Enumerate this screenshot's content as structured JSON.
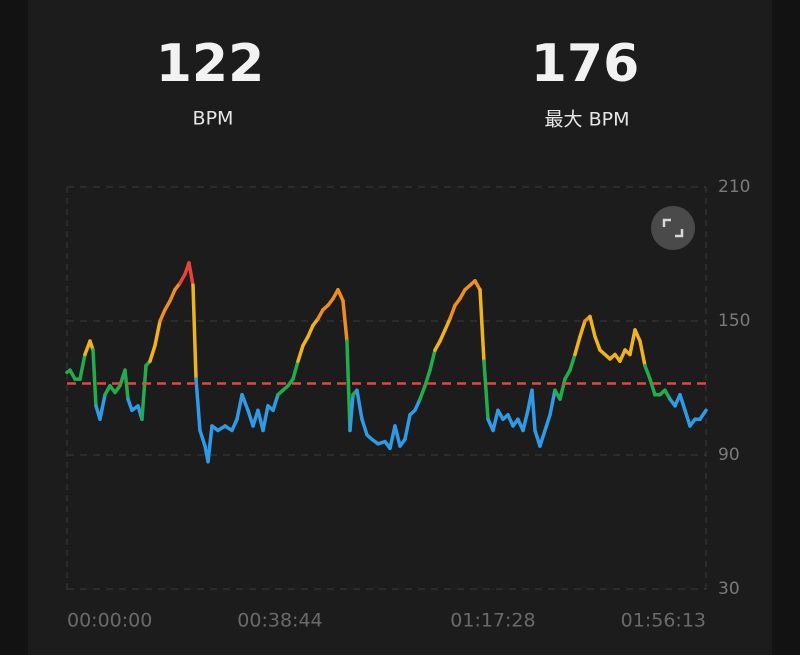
{
  "stats": [
    {
      "value": 122,
      "label": "BPM"
    },
    {
      "value": 176,
      "label": "最大 BPM"
    }
  ],
  "chart_data": {
    "type": "line",
    "x": [
      0,
      33,
      87,
      142,
      196,
      251,
      284,
      316,
      360,
      415,
      469,
      524,
      578,
      633,
      666,
      709,
      775,
      818,
      862,
      906,
      960,
      1015,
      1069,
      1124,
      1178,
      1233,
      1288,
      1331,
      1375,
      1408,
      1451,
      1506,
      1539,
      1582,
      1648,
      1724,
      1800,
      1855,
      1910,
      1975,
      2030,
      2084,
      2139,
      2193,
      2248,
      2302,
      2357,
      2412,
      2466,
      2521,
      2575,
      2630,
      2684,
      2739,
      2793,
      2848,
      2903,
      2957,
      3012,
      3055,
      3088,
      3121,
      3164,
      3219,
      3274,
      3328,
      3394,
      3470,
      3525,
      3579,
      3634,
      3688,
      3743,
      3797,
      3852,
      3907,
      3961,
      4016,
      4070,
      4125,
      4179,
      4234,
      4288,
      4343,
      4398,
      4452,
      4507,
      4550,
      4594,
      4649,
      4703,
      4758,
      4812,
      4867,
      4921,
      4976,
      5030,
      5074,
      5107,
      5161,
      5216,
      5271,
      5325,
      5380,
      5434,
      5489,
      5543,
      5598,
      5652,
      5707,
      5762,
      5816,
      5871,
      5925,
      5980,
      6034,
      6089,
      6143,
      6198,
      6253,
      6307,
      6362,
      6416,
      6471,
      6525,
      6580,
      6635,
      6689,
      6744,
      6798,
      6853,
      6907,
      6973
    ],
    "values": [
      127,
      128,
      124,
      124,
      135,
      141,
      137,
      112,
      106,
      117,
      121,
      118,
      121,
      128,
      115,
      110,
      112,
      106,
      130,
      132,
      139,
      150,
      155,
      159,
      164,
      167,
      171,
      176,
      166,
      124,
      101,
      94,
      87,
      103,
      101,
      103,
      101,
      106,
      117,
      110,
      103,
      110,
      101,
      112,
      110,
      117,
      119,
      121,
      124,
      132,
      139,
      143,
      148,
      151,
      155,
      157,
      160,
      164,
      159,
      141,
      101,
      117,
      119,
      106,
      99,
      97,
      95,
      96,
      93,
      103,
      94,
      97,
      108,
      110,
      115,
      121,
      128,
      137,
      141,
      146,
      151,
      157,
      160,
      164,
      166,
      168,
      164,
      132,
      106,
      101,
      110,
      106,
      108,
      103,
      106,
      101,
      110,
      119,
      101,
      94,
      101,
      108,
      119,
      115,
      124,
      128,
      135,
      143,
      150,
      152,
      143,
      137,
      135,
      133,
      135,
      132,
      137,
      135,
      146,
      141,
      130,
      124,
      117,
      117,
      119,
      115,
      112,
      117,
      110,
      103,
      106,
      106,
      110
    ],
    "xlim": [
      0,
      6973
    ],
    "xticks": [
      {
        "value": 0,
        "label": "00:00:00"
      },
      {
        "value": 2324,
        "label": "00:38:44"
      },
      {
        "value": 4648,
        "label": "01:17:28"
      },
      {
        "value": 6973,
        "label": "01:56:13"
      }
    ],
    "ylim": [
      30,
      210
    ],
    "yticks": [
      30,
      90,
      150,
      210
    ],
    "grid": true,
    "zone_thresholds": [
      115,
      133,
      150,
      168
    ],
    "zone_colors": [
      "#2f9ae6",
      "#22ad4c",
      "#f0b320",
      "#ef8d25",
      "#e8443a"
    ],
    "average_color": "#e04848"
  }
}
